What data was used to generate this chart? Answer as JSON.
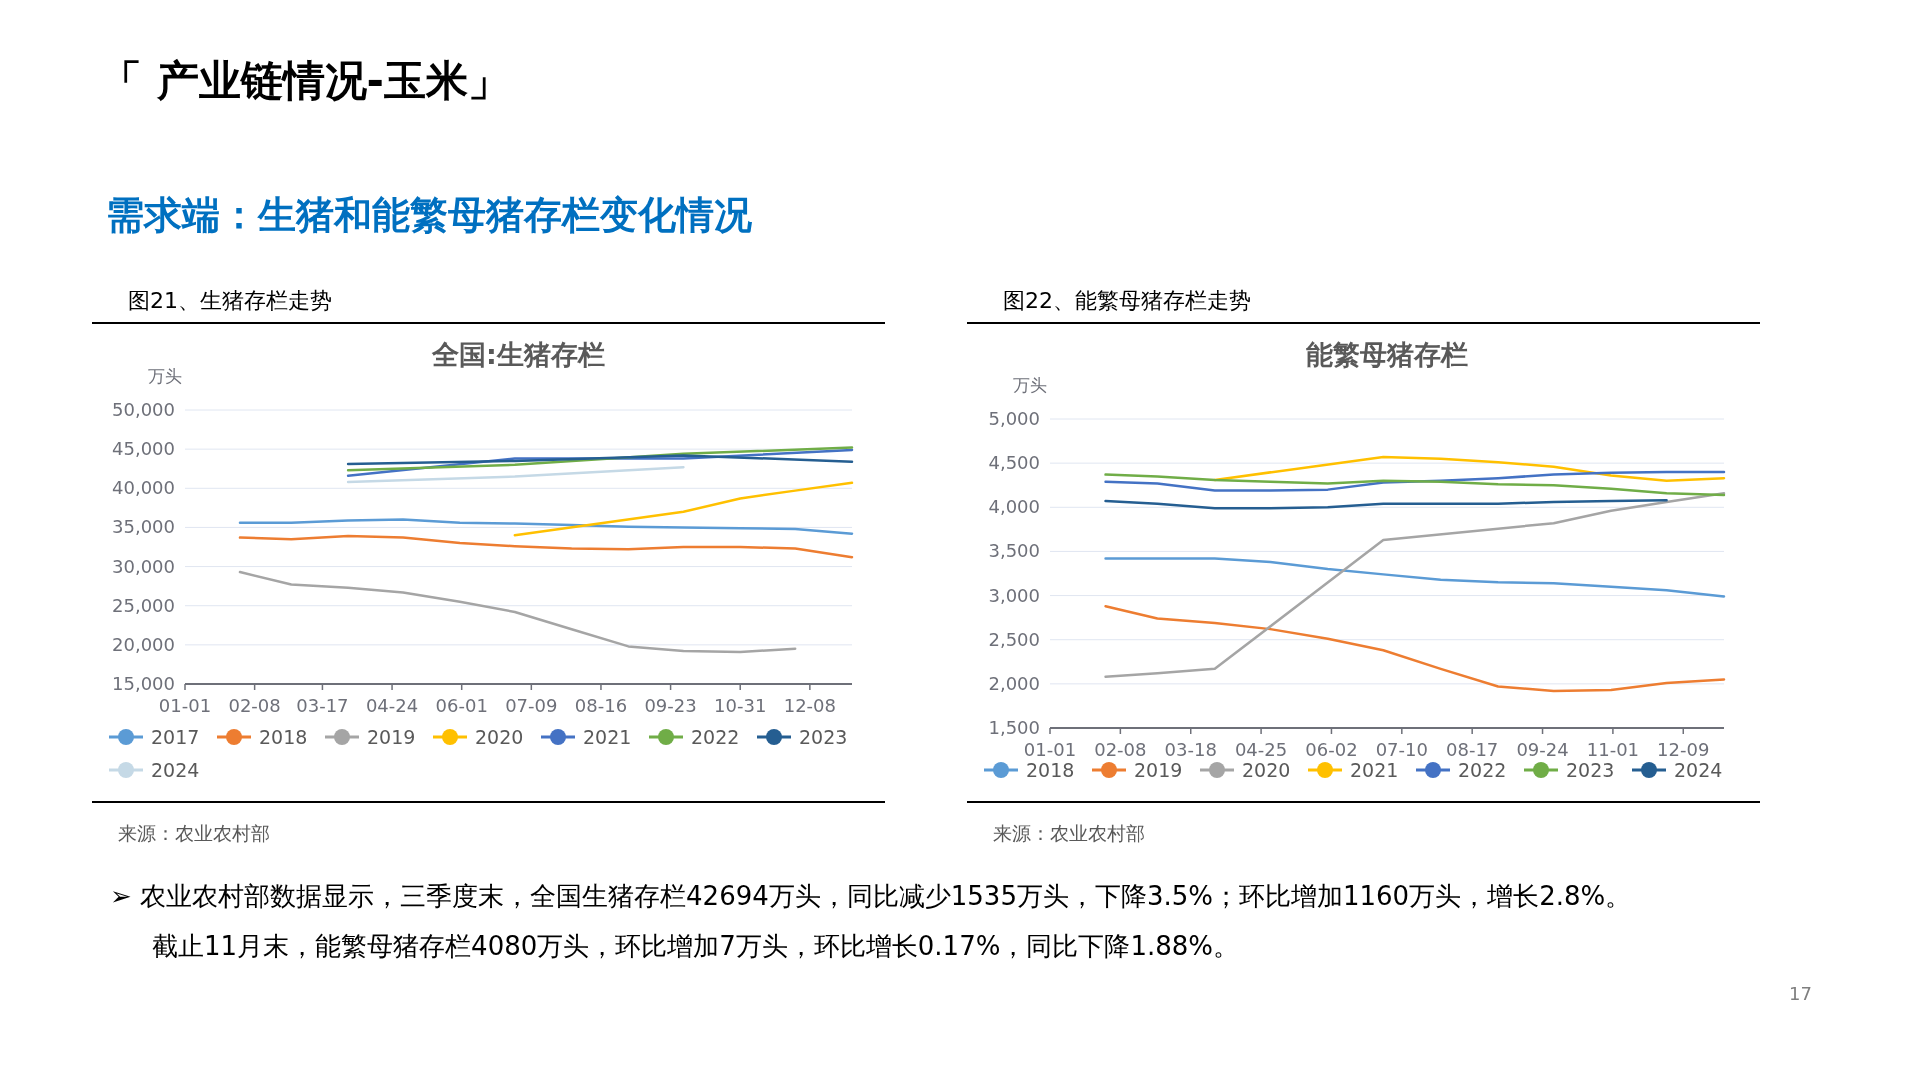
{
  "chart_data": [
    {
      "type": "other",
      "title": "「 产业链情况-玉米」",
      "subtitle": "需求端：生猪和能繁母猪存栏变化情况",
      "annotations": [
        "➢ 农业农村部数据显示，三季度末，全国生猪存栏42694万头，同比减少1535万头，下降3.5%；环比增加1160万头，增长2.8%。",
        "截止11月末，能繁母猪存栏4080万头，环比增加7万头，环比增长0.17%，同比下降1.88%。",
        "17"
      ]
    },
    {
      "type": "line",
      "title": "全国:生猪存栏",
      "ylabel": "万头",
      "annotations": [
        "图21、生猪存栏走势",
        "来源：农业农村部"
      ],
      "legend": "bottom",
      "grid": "y",
      "xlim": [
        "--01-01",
        "--12-31"
      ],
      "xticks": [
        {
          "value": "--01-01",
          "label": "01-01"
        },
        {
          "value": "--02-08",
          "label": "02-08"
        },
        {
          "value": "--03-17",
          "label": "03-17"
        },
        {
          "value": "--04-24",
          "label": "04-24"
        },
        {
          "value": "--06-01",
          "label": "06-01"
        },
        {
          "value": "--07-09",
          "label": "07-09"
        },
        {
          "value": "--08-16",
          "label": "08-16"
        },
        {
          "value": "--09-23",
          "label": "09-23"
        },
        {
          "value": "--10-31",
          "label": "10-31"
        },
        {
          "value": "--12-08",
          "label": "12-08"
        }
      ],
      "ylim": [
        15000,
        50000
      ],
      "yticks": [
        {
          "value": 15000,
          "label": "15,000"
        },
        {
          "value": 20000,
          "label": "20,000"
        },
        {
          "value": 25000,
          "label": "25,000"
        },
        {
          "value": 30000,
          "label": "30,000"
        },
        {
          "value": 35000,
          "label": "35,000"
        },
        {
          "value": 40000,
          "label": "40,000"
        },
        {
          "value": 45000,
          "label": "45,000"
        },
        {
          "value": 50000,
          "label": "50,000"
        }
      ],
      "series": [
        {
          "name": "2017",
          "color": "#5b9bd5",
          "x": [
            "--01-31",
            "--02-28",
            "--03-31",
            "--04-30",
            "--05-31",
            "--06-30",
            "--07-31",
            "--08-31",
            "--09-30",
            "--10-31",
            "--11-30",
            "--12-31"
          ],
          "values": [
            35600,
            35600,
            35900,
            36000,
            35600,
            35500,
            35300,
            35100,
            35000,
            34900,
            34800,
            34200
          ]
        },
        {
          "name": "2018",
          "color": "#ed7d31",
          "x": [
            "--01-31",
            "--02-28",
            "--03-31",
            "--04-30",
            "--05-31",
            "--06-30",
            "--07-31",
            "--08-31",
            "--09-30",
            "--10-31",
            "--11-30",
            "--12-31"
          ],
          "values": [
            33700,
            33500,
            33900,
            33700,
            33000,
            32600,
            32300,
            32200,
            32500,
            32500,
            32300,
            31200
          ]
        },
        {
          "name": "2019",
          "color": "#a5a5a5",
          "x": [
            "--01-31",
            "--02-28",
            "--03-31",
            "--04-30",
            "--05-31",
            "--06-30",
            "--07-31",
            "--08-31",
            "--09-30",
            "--10-31",
            "--11-30"
          ],
          "values": [
            29300,
            27700,
            27300,
            26700,
            25500,
            24200,
            22000,
            19800,
            19200,
            19100,
            19500
          ]
        },
        {
          "name": "2020",
          "color": "#ffc000",
          "x": [
            "--06-30",
            "--09-30",
            "--10-31",
            "--11-30",
            "--12-31"
          ],
          "values": [
            34000,
            37000,
            38700,
            39700,
            40700
          ]
        },
        {
          "name": "2021",
          "color": "#4472c4",
          "x": [
            "--03-31",
            "--06-30",
            "--09-30",
            "--12-31"
          ],
          "values": [
            41600,
            43800,
            43800,
            44900
          ]
        },
        {
          "name": "2022",
          "color": "#70ad47",
          "x": [
            "--03-31",
            "--06-30",
            "--09-30",
            "--12-31"
          ],
          "values": [
            42300,
            43000,
            44400,
            45200
          ]
        },
        {
          "name": "2023",
          "color": "#255e91",
          "x": [
            "--03-31",
            "--06-30",
            "--09-30",
            "--12-31"
          ],
          "values": [
            43100,
            43500,
            44200,
            43400
          ]
        },
        {
          "name": "2024",
          "color": "#c5d9e6",
          "x": [
            "--03-31",
            "--06-30",
            "--09-30"
          ],
          "values": [
            40800,
            41500,
            42700
          ]
        }
      ]
    },
    {
      "type": "line",
      "title": "能繁母猪存栏",
      "ylabel": "万头",
      "annotations": [
        "图22、能繁母猪存栏走势",
        "来源：农业农村部"
      ],
      "legend": "bottom",
      "grid": "y",
      "xlim": [
        "--01-01",
        "--12-31"
      ],
      "xticks": [
        {
          "value": "--01-01",
          "label": "01-01"
        },
        {
          "value": "--02-08",
          "label": "02-08"
        },
        {
          "value": "--03-18",
          "label": "03-18"
        },
        {
          "value": "--04-25",
          "label": "04-25"
        },
        {
          "value": "--06-02",
          "label": "06-02"
        },
        {
          "value": "--07-10",
          "label": "07-10"
        },
        {
          "value": "--08-17",
          "label": "08-17"
        },
        {
          "value": "--09-24",
          "label": "09-24"
        },
        {
          "value": "--11-01",
          "label": "11-01"
        },
        {
          "value": "--12-09",
          "label": "12-09"
        }
      ],
      "ylim": [
        1500,
        5000
      ],
      "yticks": [
        {
          "value": 1500,
          "label": "1,500"
        },
        {
          "value": 2000,
          "label": "2,000"
        },
        {
          "value": 2500,
          "label": "2,500"
        },
        {
          "value": 3000,
          "label": "3,000"
        },
        {
          "value": 3500,
          "label": "3,500"
        },
        {
          "value": 4000,
          "label": "4,000"
        },
        {
          "value": 4500,
          "label": "4,500"
        },
        {
          "value": 5000,
          "label": "5,000"
        }
      ],
      "series": [
        {
          "name": "2018",
          "color": "#5b9bd5",
          "x": [
            "--01-31",
            "--02-28",
            "--03-31",
            "--04-30",
            "--05-31",
            "--06-30",
            "--07-31",
            "--08-31",
            "--09-30",
            "--10-31",
            "--11-30",
            "--12-31"
          ],
          "values": [
            3420,
            3420,
            3420,
            3380,
            3300,
            3240,
            3180,
            3150,
            3140,
            3100,
            3060,
            2990
          ]
        },
        {
          "name": "2019",
          "color": "#ed7d31",
          "x": [
            "--01-31",
            "--02-28",
            "--03-31",
            "--04-30",
            "--05-31",
            "--06-30",
            "--07-31",
            "--08-31",
            "--09-30",
            "--10-31",
            "--11-30",
            "--12-31"
          ],
          "values": [
            2880,
            2740,
            2690,
            2620,
            2510,
            2380,
            2170,
            1970,
            1920,
            1930,
            2010,
            2050
          ]
        },
        {
          "name": "2020",
          "color": "#a5a5a5",
          "x": [
            "--01-31",
            "--02-28",
            "--03-31",
            "--06-30",
            "--09-30",
            "--10-31",
            "--11-30",
            "--12-31"
          ],
          "values": [
            2080,
            2120,
            2170,
            3630,
            3820,
            3960,
            4060,
            4160
          ]
        },
        {
          "name": "2021",
          "color": "#ffc000",
          "x": [
            "--03-31",
            "--06-30",
            "--07-31",
            "--08-31",
            "--09-30",
            "--10-31",
            "--11-30",
            "--12-31"
          ],
          "values": [
            4310,
            4570,
            4550,
            4510,
            4460,
            4360,
            4300,
            4330
          ]
        },
        {
          "name": "2022",
          "color": "#4472c4",
          "x": [
            "--01-31",
            "--02-28",
            "--03-31",
            "--04-30",
            "--05-31",
            "--06-30",
            "--07-31",
            "--08-31",
            "--09-30",
            "--10-31",
            "--11-30",
            "--12-31"
          ],
          "values": [
            4290,
            4270,
            4190,
            4190,
            4200,
            4280,
            4300,
            4330,
            4370,
            4390,
            4400,
            4400
          ]
        },
        {
          "name": "2023",
          "color": "#70ad47",
          "x": [
            "--01-31",
            "--02-28",
            "--03-31",
            "--04-30",
            "--05-31",
            "--06-30",
            "--07-31",
            "--08-31",
            "--09-30",
            "--10-31",
            "--11-30",
            "--12-31"
          ],
          "values": [
            4370,
            4350,
            4310,
            4290,
            4270,
            4300,
            4290,
            4260,
            4250,
            4210,
            4160,
            4140
          ]
        },
        {
          "name": "2024",
          "color": "#255e91",
          "x": [
            "--01-31",
            "--02-28",
            "--03-31",
            "--04-30",
            "--05-31",
            "--06-30",
            "--07-31",
            "--08-31",
            "--09-30",
            "--10-31",
            "--11-30"
          ],
          "values": [
            4070,
            4040,
            3990,
            3990,
            4000,
            4040,
            4040,
            4040,
            4060,
            4070,
            4080
          ]
        }
      ]
    }
  ]
}
